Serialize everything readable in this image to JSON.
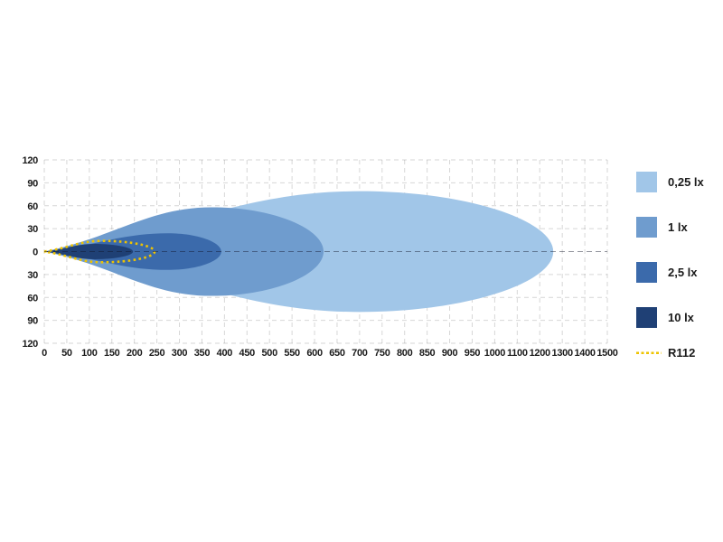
{
  "page": {
    "background": "#ffffff",
    "text_color": "#1a1a1a"
  },
  "chart_data": {
    "type": "area",
    "subtype": "isolux-beam-pattern",
    "title": "",
    "xlabel": "",
    "ylabel": "",
    "unit": "lx",
    "x_ticks": [
      "0",
      "50",
      "100",
      "150",
      "200",
      "250",
      "300",
      "350",
      "400",
      "450",
      "500",
      "550",
      "600",
      "650",
      "700",
      "750",
      "800",
      "850",
      "900",
      "950",
      "1000",
      "1100",
      "1200",
      "1300",
      "1400",
      "1500"
    ],
    "x_axis_note": "ticks evenly spaced; 50 m steps up to 1000, then 100 m steps",
    "y_ticks": [
      "120",
      "90",
      "60",
      "30",
      "0",
      "30",
      "60",
      "90",
      "120"
    ],
    "y_range_m": [
      -120,
      120
    ],
    "grid": {
      "enabled": true,
      "line_color": "rgba(0,0,0,0.16)",
      "zero_line_color": "rgba(15,20,40,0.45)",
      "dash": "5,4"
    },
    "legend_position": "right",
    "series": [
      {
        "label": "0,25 lx",
        "color": "#a1c6e8",
        "reach_m": 1260,
        "max_half_width_m": 79,
        "widest_frac": 0.62
      },
      {
        "label": "1 lx",
        "color": "#6f9cce",
        "reach_m": 620,
        "max_half_width_m": 58,
        "widest_frac": 0.6
      },
      {
        "label": "2,5 lx",
        "color": "#3b6aab",
        "reach_m": 393,
        "max_half_width_m": 24,
        "widest_frac": 0.7
      },
      {
        "label": "10 lx",
        "color": "#1f4075",
        "reach_m": 197,
        "max_half_width_m": 10,
        "widest_frac": 0.57
      }
    ],
    "reference": {
      "label": "R112",
      "color": "#eec300",
      "line_style": "dotted",
      "reach_m": 245,
      "max_half_width_m": 14,
      "widest_frac": 0.52
    }
  }
}
